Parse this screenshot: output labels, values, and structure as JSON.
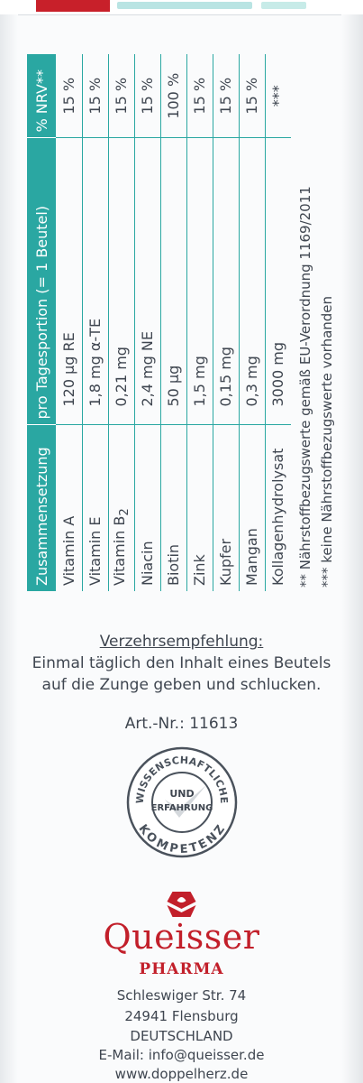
{
  "table": {
    "headers": [
      "Zusammensetzung",
      "pro Tagesportion (= 1 Beutel)",
      "% NRV**"
    ],
    "rows": [
      {
        "name": "Vitamin A",
        "amount": "120  µg RE",
        "nrv": "15 %"
      },
      {
        "name": "Vitamin E",
        "amount": "1,8 mg α-TE",
        "nrv": "15 %"
      },
      {
        "name": "Vitamin B",
        "name_sub": "2",
        "amount": "0,21 mg",
        "nrv": "15 %"
      },
      {
        "name": "Niacin",
        "amount": "2,4 mg NE",
        "nrv": "15 %"
      },
      {
        "name": "Biotin",
        "amount": "50  µg",
        "nrv": "100 %"
      },
      {
        "name": "Zink",
        "amount": "1,5 mg",
        "nrv": "15 %"
      },
      {
        "name": "Kupfer",
        "amount": "0,15 mg",
        "nrv": "15 %"
      },
      {
        "name": "Mangan",
        "amount": "0,3 mg",
        "nrv": "15 %"
      },
      {
        "name": "Kollagenhydrolysat",
        "amount": "3000 mg",
        "nrv": "***"
      }
    ],
    "footnote1": "**  Nährstoffbezugswerte gemäß EU-Verordnung 1169/2011",
    "footnote2": "*** keine Nährstoffbezugswerte vorhanden"
  },
  "usage": {
    "title": "Verzehrsempfehlung:",
    "line1": "Einmal täglich den Inhalt eines Beutels",
    "line2": "auf die Zunge geben und schlucken."
  },
  "article": "Art.-Nr.: 11613",
  "seal": {
    "top_text": "WISSENSCHAFTLICHE",
    "middle1": "UND",
    "middle2": "ERFAHRUNG",
    "bottom_text": "KOMPETENZ"
  },
  "company": {
    "name": "Queisser",
    "sub": "PHARMA",
    "street": "Schleswiger Str. 74",
    "city": "24941 Flensburg",
    "country": "DEUTSCHLAND",
    "email": "E-Mail: info@queisser.de",
    "web": "www.doppelherz.de"
  },
  "colors": {
    "teal": "#2aa7a2",
    "red": "#c21f2a",
    "text": "#3f4650"
  }
}
